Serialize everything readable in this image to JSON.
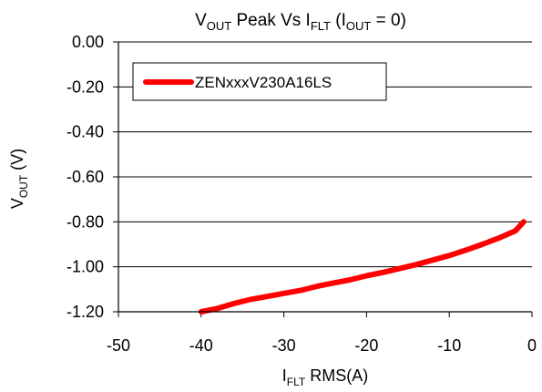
{
  "chart_data": {
    "type": "line",
    "title": {
      "v": "V",
      "out_sub": "OUT",
      "mid": " Peak Vs  I",
      "flt_sub": "FLT",
      "paren_open": " (I",
      "out_sub2": "OUT",
      "tail": " = 0)"
    },
    "ylabel": {
      "main": "V",
      "sub": "OUT",
      "tail": " (V)"
    },
    "xlabel": {
      "main": "I",
      "sub": "FLT",
      "tail": " RMS(A)"
    },
    "xlim": [
      -50,
      0
    ],
    "ylim": [
      -1.2,
      0.0
    ],
    "x_ticks": [
      -50,
      -40,
      -30,
      -20,
      -10,
      0
    ],
    "x_tick_labels": [
      "-50",
      "-40",
      "-30",
      "-20",
      "-10",
      "0"
    ],
    "y_ticks": [
      0.0,
      -0.2,
      -0.4,
      -0.6,
      -0.8,
      -1.0,
      -1.2
    ],
    "y_tick_labels": [
      "0.00",
      "-0.20",
      "-0.40",
      "-0.60",
      "-0.80",
      "-1.00",
      "-1.20"
    ],
    "grid": "horizontal",
    "legend_position": "top-left",
    "series": [
      {
        "name": "ZENxxxV230A16LS",
        "color": "#ff0000",
        "x": [
          -40,
          -38,
          -36,
          -34,
          -32,
          -30,
          -28,
          -26,
          -24,
          -22,
          -20,
          -18,
          -16,
          -14,
          -12,
          -10,
          -8,
          -6,
          -4,
          -2,
          -1
        ],
        "y": [
          -1.2,
          -1.185,
          -1.163,
          -1.145,
          -1.132,
          -1.118,
          -1.105,
          -1.087,
          -1.072,
          -1.058,
          -1.04,
          -1.025,
          -1.008,
          -0.99,
          -0.97,
          -0.95,
          -0.926,
          -0.9,
          -0.872,
          -0.84,
          -0.8
        ]
      }
    ]
  }
}
